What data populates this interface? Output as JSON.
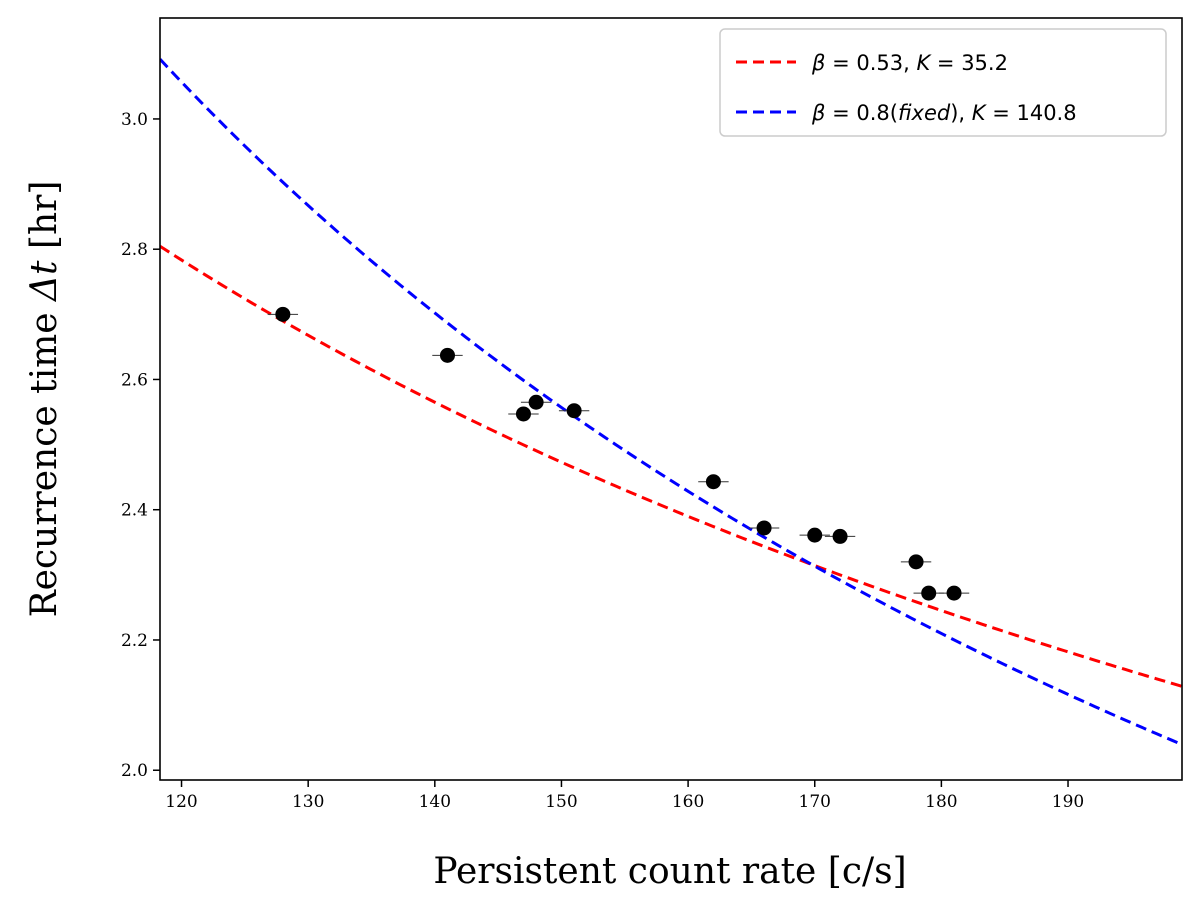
{
  "chart_data": {
    "type": "scatter",
    "title": "",
    "xlabel": "Persistent count rate [c/s]",
    "ylabel_prefix": "Recurrence time ",
    "ylabel_symbol": "Δt",
    "ylabel_suffix": " [hr]",
    "xlim": [
      118.3,
      199
    ],
    "ylim": [
      1.985,
      3.155
    ],
    "xticks": [
      120,
      130,
      140,
      150,
      160,
      170,
      180,
      190
    ],
    "xtick_labels": [
      "120",
      "130",
      "140",
      "150",
      "160",
      "170",
      "180",
      "190"
    ],
    "yticks": [
      2.0,
      2.2,
      2.4,
      2.6,
      2.8,
      3.0
    ],
    "ytick_labels": [
      "2.0",
      "2.2",
      "2.4",
      "2.6",
      "2.8",
      "3.0"
    ],
    "grid": false,
    "legend_position": "top-right",
    "points": [
      {
        "x": 128,
        "y": 2.7,
        "xerr": 1.2
      },
      {
        "x": 141,
        "y": 2.637,
        "xerr": 1.2
      },
      {
        "x": 147,
        "y": 2.547,
        "xerr": 1.2
      },
      {
        "x": 148,
        "y": 2.565,
        "xerr": 1.2
      },
      {
        "x": 151,
        "y": 2.552,
        "xerr": 1.2
      },
      {
        "x": 162,
        "y": 2.443,
        "xerr": 1.2
      },
      {
        "x": 166,
        "y": 2.372,
        "xerr": 1.2
      },
      {
        "x": 170,
        "y": 2.361,
        "xerr": 1.2
      },
      {
        "x": 172,
        "y": 2.359,
        "xerr": 1.2
      },
      {
        "x": 178,
        "y": 2.32,
        "xerr": 1.2
      },
      {
        "x": 179,
        "y": 2.272,
        "xerr": 1.2
      },
      {
        "x": 181,
        "y": 2.272,
        "xerr": 1.2
      }
    ],
    "series": [
      {
        "name": "red-fit",
        "label_beta": "β",
        "label_mid": " = 0.53, ",
        "label_k": "K",
        "label_end": " = 35.2",
        "beta": 0.53,
        "K": 35.2,
        "color": "#ff0000"
      },
      {
        "name": "blue-fit",
        "label_beta": "β",
        "label_mid": " = 0.8(",
        "label_fixed": "fixed",
        "label_mid2": "), ",
        "label_k": "K",
        "label_end": " = 140.8",
        "beta": 0.8,
        "K": 140.8,
        "color": "#0000ff"
      }
    ]
  }
}
